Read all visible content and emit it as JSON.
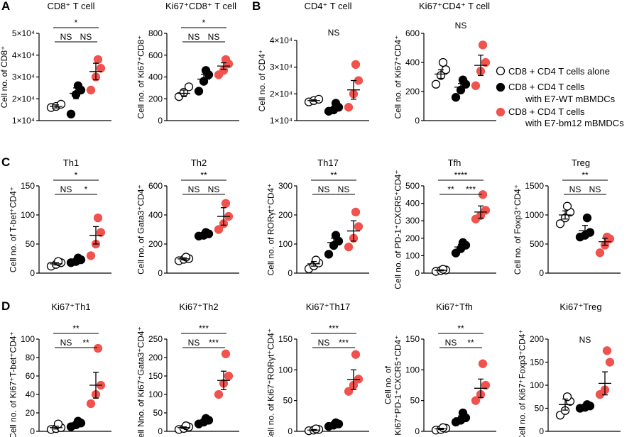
{
  "panel_letters": [
    "A",
    "B",
    "C",
    "D"
  ],
  "legend": {
    "groups": [
      {
        "lines": [
          "CD8 + CD4 T cells alone"
        ],
        "color": "#ffffff",
        "stroke": "#000000"
      },
      {
        "lines": [
          "CD8 + CD4 T  cells",
          "with E7-WT mBMDCs"
        ],
        "color": "#000000",
        "stroke": "#000000"
      },
      {
        "lines": [
          "CD8 + CD4 T cells",
          "with E7-bm12 mBMDCs"
        ],
        "color": "#f0524d",
        "stroke": "#f0524d"
      }
    ]
  },
  "colors": {
    "alone": "#ffffff",
    "wt": "#000000",
    "bm12": "#f0524d",
    "axis": "#000000"
  },
  "chart_data": [
    {
      "type": "scatter",
      "panel": "A",
      "title": "CD8⁺ T cell",
      "ylabel": [
        "Cell no. of CD8⁺"
      ],
      "yticks": [
        "1×10⁴",
        "2×10⁴",
        "3×10⁴",
        "4×10⁴",
        "5×10⁴"
      ],
      "ylim": [
        10000,
        50000
      ],
      "tickvals": [
        10000,
        20000,
        30000,
        40000,
        50000
      ],
      "groups": [
        [
          16000,
          16500,
          17500
        ],
        [
          13000,
          22000,
          24000,
          26000
        ],
        [
          24000,
          30000,
          34000,
          38000
        ]
      ],
      "means": [
        16500,
        22500,
        32500
      ],
      "sems": [
        700,
        2500,
        3800
      ],
      "sig": [
        {
          "a": 0,
          "b": 1,
          "label": "NS"
        },
        {
          "a": 1,
          "b": 2,
          "label": "NS"
        },
        {
          "a": 0,
          "b": 2,
          "label": "*"
        }
      ]
    },
    {
      "type": "scatter",
      "panel": "A",
      "title": "Ki67⁺CD8⁺ T cell",
      "ylabel": [
        "Cell no. of Ki67⁺CD8⁺"
      ],
      "yticks": [
        "0",
        "200",
        "400",
        "600",
        "800"
      ],
      "ylim": [
        0,
        800
      ],
      "tickvals": [
        0,
        200,
        400,
        600,
        800
      ],
      "groups": [
        [
          220,
          260,
          310
        ],
        [
          270,
          360,
          420,
          460
        ],
        [
          420,
          460,
          520,
          560
        ]
      ],
      "means": [
        250,
        380,
        500
      ],
      "sems": [
        30,
        45,
        30
      ],
      "sig": [
        {
          "a": 0,
          "b": 1,
          "label": "NS"
        },
        {
          "a": 1,
          "b": 2,
          "label": "NS"
        },
        {
          "a": 0,
          "b": 2,
          "label": "*"
        }
      ]
    },
    {
      "type": "scatter",
      "panel": "B",
      "title": "CD4⁺ T cell",
      "ylabel": [
        "Cell no. of CD4⁺"
      ],
      "yticks": [
        "1×10⁴",
        "2×10⁴",
        "3×10⁴",
        "4×10⁴"
      ],
      "ylim": [
        10000,
        40000
      ],
      "tickvals": [
        10000,
        20000,
        30000,
        40000
      ],
      "groups": [
        [
          17000,
          17500,
          18000
        ],
        [
          13500,
          14000,
          15000,
          16500
        ],
        [
          15000,
          20000,
          25000,
          31000
        ]
      ],
      "means": [
        17500,
        14500,
        21500
      ],
      "sems": [
        300,
        700,
        3500
      ],
      "sig": [
        {
          "label": "NS"
        }
      ]
    },
    {
      "type": "scatter",
      "panel": "B",
      "title": "Ki67⁺CD4⁺ T cell",
      "ylabel": [
        "Cell no. of Ki67⁺CD4⁺"
      ],
      "yticks": [
        "0",
        "200",
        "400",
        "600"
      ],
      "ylim": [
        0,
        600
      ],
      "tickvals": [
        0,
        200,
        400,
        600
      ],
      "groups": [
        [
          250,
          310,
          350,
          400
        ],
        [
          160,
          210,
          250,
          280
        ],
        [
          240,
          340,
          400,
          520
        ]
      ],
      "means": [
        320,
        230,
        380
      ],
      "sems": [
        30,
        25,
        70
      ],
      "sig": [
        {
          "label": "NS"
        }
      ]
    },
    {
      "type": "scatter",
      "panel": "C",
      "title": "Th1",
      "ylabel": [
        "Cell no. of T-bet⁺CD4⁺"
      ],
      "yticks": [
        "0",
        "50",
        "100",
        "150"
      ],
      "ylim": [
        0,
        150
      ],
      "tickvals": [
        0,
        50,
        100,
        150
      ],
      "groups": [
        [
          12,
          15,
          18,
          20
        ],
        [
          18,
          20,
          23,
          26
        ],
        [
          30,
          50,
          70,
          95
        ]
      ],
      "means": [
        16,
        22,
        65
      ],
      "sems": [
        2,
        2,
        15
      ],
      "sig": [
        {
          "a": 0,
          "b": 1,
          "label": "NS"
        },
        {
          "a": 1,
          "b": 2,
          "label": "*"
        },
        {
          "a": 0,
          "b": 2,
          "label": "*"
        }
      ]
    },
    {
      "type": "scatter",
      "panel": "C",
      "title": "Th2",
      "ylabel": [
        "Cell no. of Gata3⁺CD4⁺"
      ],
      "yticks": [
        "0",
        "200",
        "400",
        "600"
      ],
      "ylim": [
        0,
        600
      ],
      "tickvals": [
        0,
        200,
        400,
        600
      ],
      "groups": [
        [
          85,
          95,
          100,
          110
        ],
        [
          255,
          260,
          270,
          280
        ],
        [
          300,
          340,
          390,
          480
        ]
      ],
      "means": [
        98,
        265,
        390
      ],
      "sems": [
        7,
        6,
        60
      ],
      "sig": [
        {
          "a": 0,
          "b": 1,
          "label": "NS"
        },
        {
          "a": 1,
          "b": 2,
          "label": "NS"
        },
        {
          "a": 0,
          "b": 2,
          "label": "**"
        }
      ]
    },
    {
      "type": "scatter",
      "panel": "C",
      "title": "Th17",
      "ylabel": [
        "Cell no. of RORγt⁺CD4⁺"
      ],
      "yticks": [
        "0",
        "100",
        "200",
        "300"
      ],
      "ylim": [
        0,
        300
      ],
      "tickvals": [
        0,
        100,
        200,
        300
      ],
      "groups": [
        [
          15,
          25,
          35,
          45
        ],
        [
          65,
          95,
          110,
          130
        ],
        [
          90,
          120,
          160,
          210
        ]
      ],
      "means": [
        32,
        105,
        145
      ],
      "sems": [
        8,
        15,
        35
      ],
      "sig": [
        {
          "a": 0,
          "b": 1,
          "label": "NS"
        },
        {
          "a": 1,
          "b": 2,
          "label": "NS"
        },
        {
          "a": 0,
          "b": 2,
          "label": "**"
        }
      ]
    },
    {
      "type": "scatter",
      "panel": "C",
      "title": "Tfh",
      "ylabel": [
        "Cell no. of  PD-1⁺CXCR5⁺CD4⁺"
      ],
      "yticks": [
        "0",
        "100",
        "200",
        "300",
        "400",
        "500"
      ],
      "ylim": [
        0,
        500
      ],
      "tickvals": [
        0,
        100,
        200,
        300,
        400,
        500
      ],
      "groups": [
        [
          10,
          15,
          18,
          22
        ],
        [
          115,
          140,
          160,
          175
        ],
        [
          310,
          330,
          360,
          450
        ]
      ],
      "means": [
        16,
        150,
        350
      ],
      "sems": [
        3,
        15,
        35
      ],
      "sig": [
        {
          "a": 0,
          "b": 1,
          "label": "**"
        },
        {
          "a": 1,
          "b": 2,
          "label": "***"
        },
        {
          "a": 0,
          "b": 2,
          "label": "****"
        }
      ]
    },
    {
      "type": "scatter",
      "panel": "C",
      "title": "Treg",
      "ylabel": [
        "Cell no. of Foxp3⁺CD4⁺"
      ],
      "yticks": [
        "0",
        "500",
        "1000",
        "1500"
      ],
      "ylim": [
        0,
        1500
      ],
      "tickvals": [
        0,
        500,
        1000,
        1500
      ],
      "groups": [
        [
          850,
          950,
          1050,
          1150
        ],
        [
          620,
          650,
          700,
          950
        ],
        [
          350,
          480,
          590,
          620
        ]
      ],
      "means": [
        1000,
        730,
        540
      ],
      "sems": [
        70,
        90,
        60
      ],
      "sig": [
        {
          "a": 0,
          "b": 1,
          "label": "NS"
        },
        {
          "a": 1,
          "b": 2,
          "label": "NS"
        },
        {
          "a": 0,
          "b": 2,
          "label": "**"
        }
      ]
    },
    {
      "type": "scatter",
      "panel": "D",
      "title": "Ki67⁺Th1",
      "ylabel": [
        "Cell no. of  Ki67⁺T-bet⁺CD4⁺"
      ],
      "yticks": [
        "0",
        "20",
        "40",
        "60",
        "80",
        "100"
      ],
      "ylim": [
        0,
        100
      ],
      "tickvals": [
        0,
        20,
        40,
        60,
        80,
        100
      ],
      "groups": [
        [
          2,
          3,
          4,
          8
        ],
        [
          5,
          7,
          9,
          11
        ],
        [
          30,
          40,
          50,
          90
        ]
      ],
      "means": [
        4,
        8,
        50
      ],
      "sems": [
        1.5,
        1.5,
        14
      ],
      "sig": [
        {
          "a": 0,
          "b": 1,
          "label": "NS"
        },
        {
          "a": 1,
          "b": 2,
          "label": "**"
        },
        {
          "a": 0,
          "b": 2,
          "label": "**"
        }
      ]
    },
    {
      "type": "scatter",
      "panel": "D",
      "title": "Ki67⁺Th2",
      "ylabel": [
        "Cell Nno. of Ki67⁺Gata3⁺CD4⁺"
      ],
      "yticks": [
        "0",
        "50",
        "100",
        "150",
        "200",
        "250"
      ],
      "ylim": [
        0,
        250
      ],
      "tickvals": [
        0,
        50,
        100,
        150,
        200,
        250
      ],
      "groups": [
        [
          5,
          8,
          12,
          15
        ],
        [
          20,
          25,
          30,
          35
        ],
        [
          100,
          130,
          150,
          210
        ]
      ],
      "means": [
        10,
        28,
        138
      ],
      "sems": [
        2,
        4,
        25
      ],
      "sig": [
        {
          "a": 0,
          "b": 1,
          "label": "NS"
        },
        {
          "a": 1,
          "b": 2,
          "label": "***"
        },
        {
          "a": 0,
          "b": 2,
          "label": "***"
        }
      ]
    },
    {
      "type": "scatter",
      "panel": "D",
      "title": "Ki67⁺Th17",
      "ylabel": [
        "Cell no. of  Ki67⁺RORγt⁺CD4⁺"
      ],
      "yticks": [
        "0",
        "50",
        "100",
        "150"
      ],
      "ylim": [
        0,
        150
      ],
      "tickvals": [
        0,
        50,
        100,
        150
      ],
      "groups": [
        [
          1,
          2,
          3,
          4
        ],
        [
          8,
          10,
          12,
          14
        ],
        [
          65,
          75,
          85,
          125
        ]
      ],
      "means": [
        2,
        11,
        84
      ],
      "sems": [
        1,
        1.5,
        16
      ],
      "sig": [
        {
          "a": 0,
          "b": 1,
          "label": "NS"
        },
        {
          "a": 1,
          "b": 2,
          "label": "***"
        },
        {
          "a": 0,
          "b": 2,
          "label": "***"
        }
      ]
    },
    {
      "type": "scatter",
      "panel": "D",
      "title": "Ki67⁺Tfh",
      "ylabel": [
        "Cell no. of",
        "Ki67⁺PD-1⁺CXCR5⁺CD4⁺"
      ],
      "yticks": [
        "0",
        "50",
        "100",
        "150"
      ],
      "ylim": [
        0,
        150
      ],
      "tickvals": [
        0,
        50,
        100,
        150
      ],
      "groups": [
        [
          2,
          3,
          5,
          6
        ],
        [
          15,
          18,
          22,
          30
        ],
        [
          50,
          60,
          75,
          110
        ]
      ],
      "means": [
        4,
        22,
        70
      ],
      "sems": [
        1,
        3,
        15
      ],
      "sig": [
        {
          "a": 0,
          "b": 1,
          "label": "NS"
        },
        {
          "a": 1,
          "b": 2,
          "label": "**"
        },
        {
          "a": 0,
          "b": 2,
          "label": "**"
        }
      ]
    },
    {
      "type": "scatter",
      "panel": "D",
      "title": "Ki67⁺Treg",
      "ylabel": [
        "Cell no. of  Ki67⁺Foxp3⁺CD4⁺"
      ],
      "yticks": [
        "0",
        "50",
        "100",
        "150",
        "200"
      ],
      "ylim": [
        0,
        200
      ],
      "tickvals": [
        0,
        50,
        100,
        150,
        200
      ],
      "groups": [
        [
          35,
          45,
          65,
          75
        ],
        [
          50,
          52,
          55,
          58
        ],
        [
          80,
          90,
          150,
          175
        ]
      ],
      "means": [
        58,
        54,
        104
      ],
      "sems": [
        12,
        2,
        25
      ],
      "sig": [
        {
          "label": "NS"
        }
      ]
    }
  ]
}
